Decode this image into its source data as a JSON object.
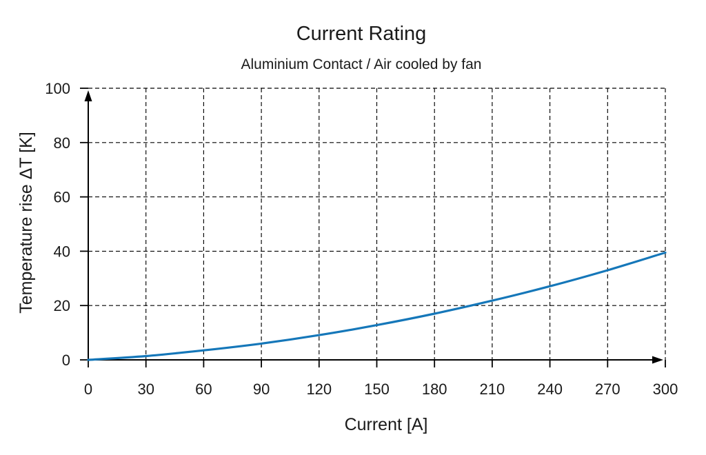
{
  "chart_data": {
    "type": "line",
    "title": "Current Rating",
    "subtitle": "Aluminium Contact / Air cooled by fan",
    "xlabel": "Current [A]",
    "ylabel": "Temperature rise ΔT [K]",
    "xlim": [
      0,
      300
    ],
    "ylim": [
      0,
      100
    ],
    "xticks": [
      0,
      30,
      60,
      90,
      120,
      150,
      180,
      210,
      240,
      270,
      300
    ],
    "yticks": [
      0,
      20,
      40,
      60,
      80,
      100
    ],
    "grid": "dashed-black",
    "legend": "none",
    "axis_arrows": true,
    "background_color": "#ffffff",
    "text_color": "#1a1a1a",
    "series": [
      {
        "name": "Temperature rise ΔT",
        "color": "#1577b9",
        "x": [
          0,
          30,
          60,
          90,
          120,
          150,
          180,
          210,
          240,
          270,
          300
        ],
        "y": [
          0,
          1.4,
          3.5,
          6.0,
          9.1,
          12.8,
          17.0,
          21.8,
          27.1,
          33.0,
          39.5
        ]
      }
    ]
  }
}
